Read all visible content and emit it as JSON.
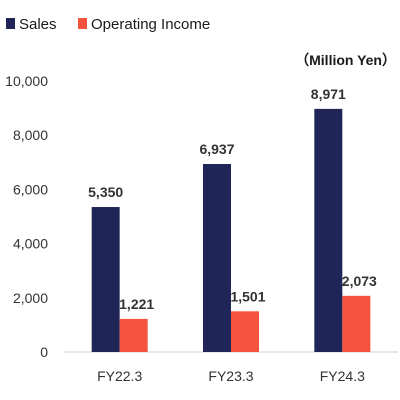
{
  "chart_data": {
    "type": "bar",
    "categories": [
      "FY22.3",
      "FY23.3",
      "FY24.3"
    ],
    "series": [
      {
        "name": "Sales",
        "values": [
          5350,
          6937,
          8971
        ],
        "labels": [
          "5,350",
          "6,937",
          "8,971"
        ],
        "color": "#1f2556"
      },
      {
        "name": "Operating Income",
        "values": [
          1221,
          1501,
          2073
        ],
        "labels": [
          "1,221",
          "1,501",
          "2,073"
        ],
        "color": "#f5533d"
      }
    ],
    "unit_label": "（Million Yen）",
    "ylim": [
      0,
      10000
    ],
    "yticks": [
      0,
      2000,
      4000,
      6000,
      8000,
      10000
    ],
    "ytick_labels": [
      "0",
      "2,000",
      "4,000",
      "6,000",
      "8,000",
      "10,000"
    ],
    "grid": false,
    "legend_position": "top-left"
  }
}
